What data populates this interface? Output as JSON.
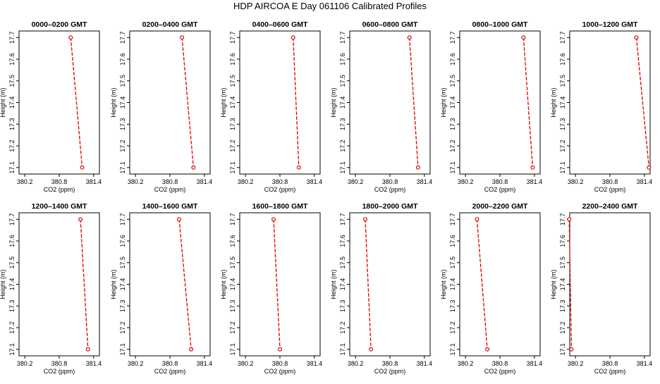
{
  "title": "HDP  AIRCOA E  Day 061106  Calibrated Profiles",
  "colors": {
    "series": "#dd0000",
    "axis": "#000000"
  },
  "chart_data": [
    {
      "type": "line",
      "title": "0000–0200 GMT",
      "xlabel": "CO2 (ppm)",
      "ylabel": "Height (m)",
      "x": [
        381.0,
        381.2
      ],
      "y": [
        17.7,
        17.1
      ]
    },
    {
      "type": "line",
      "title": "0200–0400 GMT",
      "xlabel": "CO2 (ppm)",
      "ylabel": "Height (m)",
      "x": [
        381.01,
        381.21
      ],
      "y": [
        17.7,
        17.1
      ]
    },
    {
      "type": "line",
      "title": "0400–0600 GMT",
      "xlabel": "CO2 (ppm)",
      "ylabel": "Height (m)",
      "x": [
        381.03,
        381.13
      ],
      "y": [
        17.7,
        17.1
      ]
    },
    {
      "type": "line",
      "title": "0600–0800 GMT",
      "xlabel": "CO2 (ppm)",
      "ylabel": "Height (m)",
      "x": [
        381.14,
        381.29
      ],
      "y": [
        17.7,
        17.1
      ]
    },
    {
      "type": "line",
      "title": "0800–1000 GMT",
      "xlabel": "CO2 (ppm)",
      "ylabel": "Height (m)",
      "x": [
        381.21,
        381.37
      ],
      "y": [
        17.7,
        17.1
      ]
    },
    {
      "type": "line",
      "title": "1000–1200 GMT",
      "xlabel": "CO2 (ppm)",
      "ylabel": "Height (m)",
      "x": [
        381.26,
        381.48
      ],
      "y": [
        17.7,
        17.1
      ]
    },
    {
      "type": "line",
      "title": "1200–1400 GMT",
      "xlabel": "CO2 (ppm)",
      "ylabel": "Height (m)",
      "x": [
        381.17,
        381.3
      ],
      "y": [
        17.7,
        17.1
      ]
    },
    {
      "type": "line",
      "title": "1400–1600 GMT",
      "xlabel": "CO2 (ppm)",
      "ylabel": "Height (m)",
      "x": [
        380.96,
        381.17
      ],
      "y": [
        17.7,
        17.1
      ]
    },
    {
      "type": "line",
      "title": "1600–1800 GMT",
      "xlabel": "CO2 (ppm)",
      "ylabel": "Height (m)",
      "x": [
        380.69,
        380.8
      ],
      "y": [
        17.7,
        17.1
      ]
    },
    {
      "type": "line",
      "title": "1800–2000 GMT",
      "xlabel": "CO2 (ppm)",
      "ylabel": "Height (m)",
      "x": [
        380.37,
        380.47
      ],
      "y": [
        17.7,
        17.1
      ]
    },
    {
      "type": "line",
      "title": "2000–2200 GMT",
      "xlabel": "CO2 (ppm)",
      "ylabel": "Height (m)",
      "x": [
        380.4,
        380.58
      ],
      "y": [
        17.7,
        17.1
      ]
    },
    {
      "type": "line",
      "title": "2200–2400 GMT",
      "xlabel": "CO2 (ppm)",
      "ylabel": "Height (m)",
      "x": [
        380.09,
        380.13
      ],
      "y": [
        17.7,
        17.1
      ]
    }
  ],
  "axes": [
    {
      "xlim": [
        380.1,
        381.5
      ],
      "xticks": [
        380.2,
        380.8,
        381.4
      ],
      "xticklabels": [
        "380.2",
        "380.8",
        "381.4"
      ],
      "ylim": [
        17.07,
        17.73
      ],
      "yticks": [
        17.1,
        17.2,
        17.3,
        17.4,
        17.5,
        17.6,
        17.7
      ],
      "yticklabels": [
        "17.1",
        "17.2",
        "17.3",
        "17.4",
        "17.5",
        "17.6",
        "17.7"
      ]
    },
    {
      "xlim": [
        380.1,
        381.5
      ],
      "xticks": [
        380.2,
        380.8,
        381.4
      ],
      "xticklabels": [
        "380.2",
        "380.8",
        "381.4"
      ],
      "ylim": [
        17.07,
        17.73
      ],
      "yticks": [
        17.1,
        17.2,
        17.3,
        17.4,
        17.5,
        17.6,
        17.7
      ],
      "yticklabels": [
        "17.1",
        "17.2",
        "17.3",
        "17.4",
        "17.5",
        "17.6",
        "17.7"
      ]
    },
    {
      "xlim": [
        380.1,
        381.5
      ],
      "xticks": [
        380.2,
        380.8,
        381.4
      ],
      "xticklabels": [
        "380.2",
        "380.8",
        "381.4"
      ],
      "ylim": [
        17.07,
        17.73
      ],
      "yticks": [
        17.1,
        17.2,
        17.3,
        17.4,
        17.5,
        17.6,
        17.7
      ],
      "yticklabels": [
        "17.1",
        "17.2",
        "17.3",
        "17.4",
        "17.5",
        "17.6",
        "17.7"
      ]
    },
    {
      "xlim": [
        380.1,
        381.5
      ],
      "xticks": [
        380.2,
        380.8,
        381.4
      ],
      "xticklabels": [
        "380.2",
        "380.8",
        "381.4"
      ],
      "ylim": [
        17.07,
        17.73
      ],
      "yticks": [
        17.1,
        17.2,
        17.3,
        17.4,
        17.5,
        17.6,
        17.7
      ],
      "yticklabels": [
        "17.1",
        "17.2",
        "17.3",
        "17.4",
        "17.5",
        "17.6",
        "17.7"
      ]
    },
    {
      "xlim": [
        380.1,
        381.5
      ],
      "xticks": [
        380.2,
        380.8,
        381.4
      ],
      "xticklabels": [
        "380.2",
        "380.8",
        "381.4"
      ],
      "ylim": [
        17.07,
        17.73
      ],
      "yticks": [
        17.1,
        17.2,
        17.3,
        17.4,
        17.5,
        17.6,
        17.7
      ],
      "yticklabels": [
        "17.1",
        "17.2",
        "17.3",
        "17.4",
        "17.5",
        "17.6",
        "17.7"
      ]
    },
    {
      "xlim": [
        380.1,
        381.5
      ],
      "xticks": [
        380.2,
        380.8,
        381.4
      ],
      "xticklabels": [
        "380.2",
        "380.8",
        "381.4"
      ],
      "ylim": [
        17.07,
        17.73
      ],
      "yticks": [
        17.1,
        17.2,
        17.3,
        17.4,
        17.5,
        17.6,
        17.7
      ],
      "yticklabels": [
        "17.1",
        "17.2",
        "17.3",
        "17.4",
        "17.5",
        "17.6",
        "17.7"
      ]
    },
    {
      "xlim": [
        380.1,
        381.5
      ],
      "xticks": [
        380.2,
        380.8,
        381.4
      ],
      "xticklabels": [
        "380.2",
        "380.8",
        "381.4"
      ],
      "ylim": [
        17.07,
        17.73
      ],
      "yticks": [
        17.1,
        17.2,
        17.3,
        17.4,
        17.5,
        17.6,
        17.7
      ],
      "yticklabels": [
        "17.1",
        "17.2",
        "17.3",
        "17.4",
        "17.5",
        "17.6",
        "17.7"
      ]
    },
    {
      "xlim": [
        380.1,
        381.5
      ],
      "xticks": [
        380.2,
        380.8,
        381.4
      ],
      "xticklabels": [
        "380.2",
        "380.8",
        "381.4"
      ],
      "ylim": [
        17.07,
        17.73
      ],
      "yticks": [
        17.1,
        17.2,
        17.3,
        17.4,
        17.5,
        17.6,
        17.7
      ],
      "yticklabels": [
        "17.1",
        "17.2",
        "17.3",
        "17.4",
        "17.5",
        "17.6",
        "17.7"
      ]
    },
    {
      "xlim": [
        380.1,
        381.5
      ],
      "xticks": [
        380.2,
        380.8,
        381.4
      ],
      "xticklabels": [
        "380.2",
        "380.8",
        "381.4"
      ],
      "ylim": [
        17.07,
        17.73
      ],
      "yticks": [
        17.1,
        17.2,
        17.3,
        17.4,
        17.5,
        17.6,
        17.7
      ],
      "yticklabels": [
        "17.1",
        "17.2",
        "17.3",
        "17.4",
        "17.5",
        "17.6",
        "17.7"
      ]
    },
    {
      "xlim": [
        380.1,
        381.5
      ],
      "xticks": [
        380.2,
        380.8,
        381.4
      ],
      "xticklabels": [
        "380.2",
        "380.8",
        "381.4"
      ],
      "ylim": [
        17.07,
        17.73
      ],
      "yticks": [
        17.1,
        17.2,
        17.3,
        17.4,
        17.5,
        17.6,
        17.7
      ],
      "yticklabels": [
        "17.1",
        "17.2",
        "17.3",
        "17.4",
        "17.5",
        "17.6",
        "17.7"
      ]
    },
    {
      "xlim": [
        380.1,
        381.5
      ],
      "xticks": [
        380.2,
        380.8,
        381.4
      ],
      "xticklabels": [
        "380.2",
        "380.8",
        "381.4"
      ],
      "ylim": [
        17.07,
        17.73
      ],
      "yticks": [
        17.1,
        17.2,
        17.3,
        17.4,
        17.5,
        17.6,
        17.7
      ],
      "yticklabels": [
        "17.1",
        "17.2",
        "17.3",
        "17.4",
        "17.5",
        "17.6",
        "17.7"
      ]
    },
    {
      "xlim": [
        380.1,
        381.5
      ],
      "xticks": [
        380.2,
        380.8,
        381.4
      ],
      "xticklabels": [
        "380.2",
        "380.8",
        "381.4"
      ],
      "ylim": [
        17.07,
        17.73
      ],
      "yticks": [
        17.1,
        17.2,
        17.3,
        17.4,
        17.5,
        17.6,
        17.7
      ],
      "yticklabels": [
        "17.1",
        "17.2",
        "17.3",
        "17.4",
        "17.5",
        "17.6",
        "17.7"
      ]
    }
  ]
}
